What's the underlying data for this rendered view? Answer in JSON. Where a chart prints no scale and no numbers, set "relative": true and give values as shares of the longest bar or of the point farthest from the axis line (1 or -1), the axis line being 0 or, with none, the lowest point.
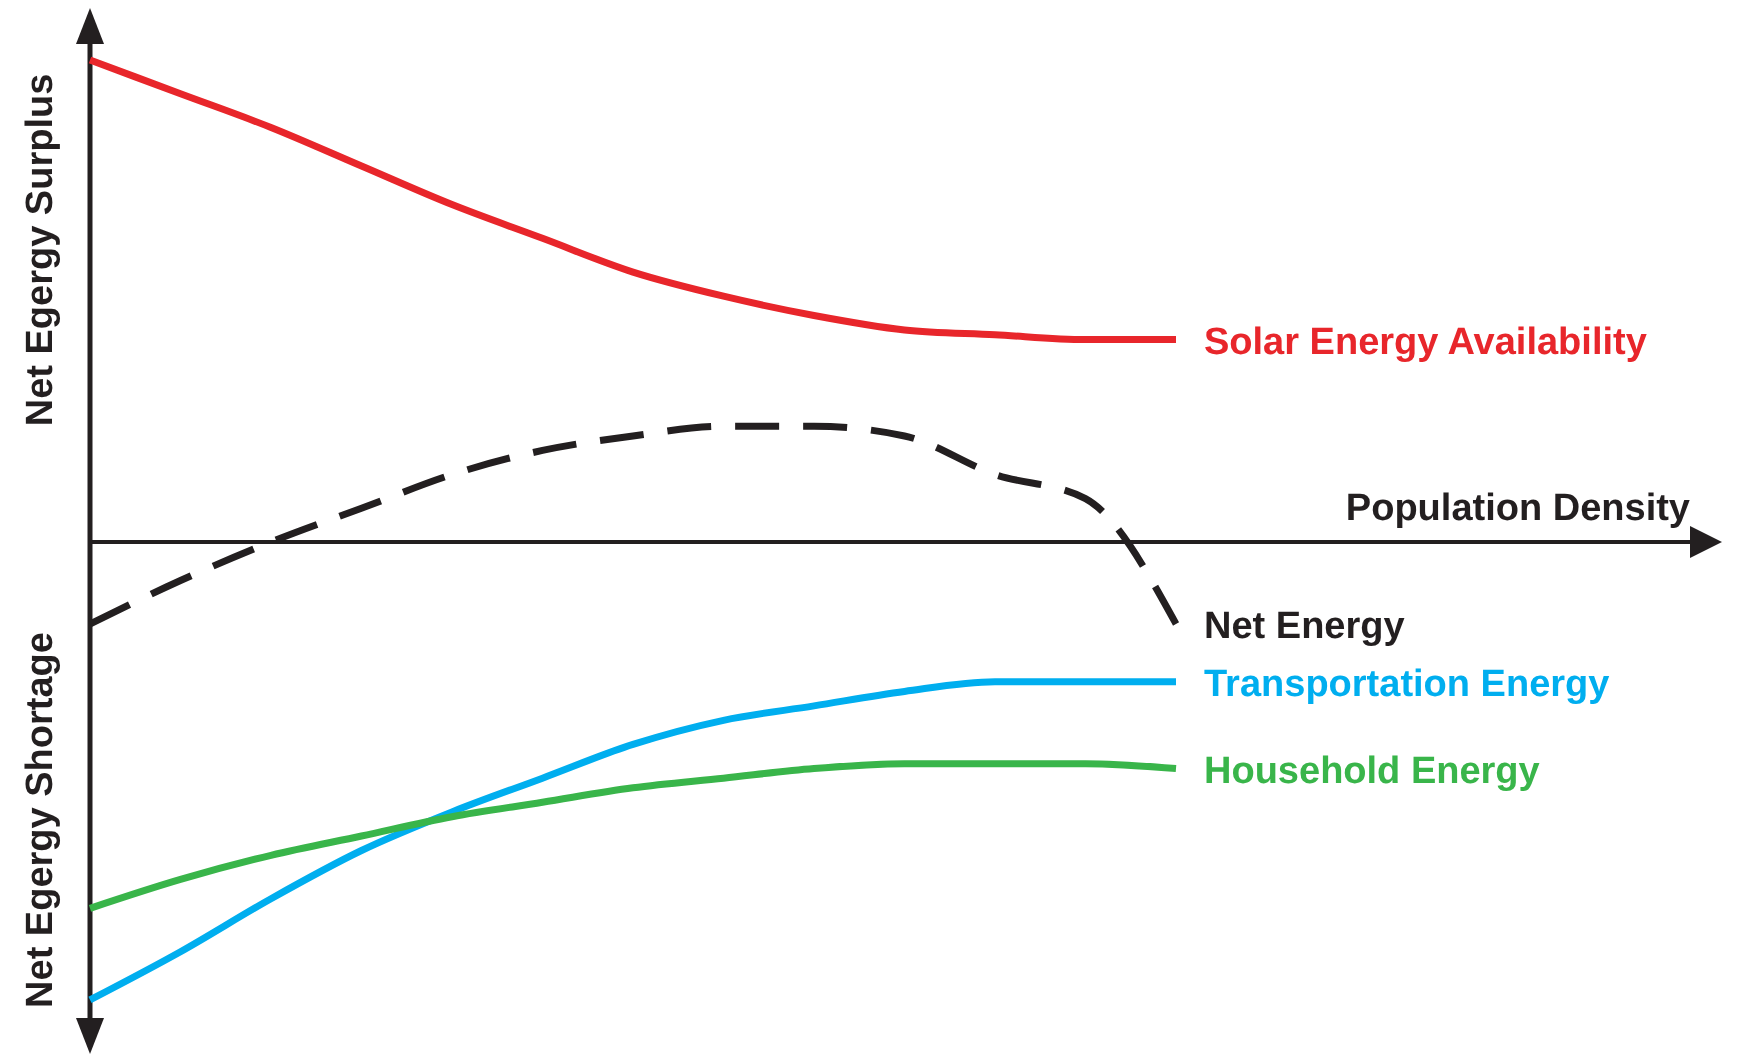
{
  "chart_data": {
    "type": "line",
    "relative": true,
    "xlabel": "Population Density",
    "ylabel": "Net Egergy Surplus",
    "annotations": [
      "Net Egergy Shortage"
    ],
    "line_style": "solid",
    "categories": [
      null,
      null,
      null,
      null,
      null,
      null,
      null,
      null,
      null,
      null,
      null,
      null,
      null
    ],
    "series": [
      {
        "name": "Solar Energy Availability",
        "color": "#e8262b",
        "values": [
          1,
          0.93,
          0.86,
          0.78,
          0.7,
          0.63,
          0.56,
          0.51,
          0.47,
          0.44,
          0.43,
          0.42,
          0.42
        ]
      },
      {
        "name": "Net Energy",
        "color": "#231f20",
        "line_style": "dashed",
        "values": [
          -0.17,
          -0.08,
          0,
          0.07,
          0.14,
          0.19,
          0.22,
          0.24,
          0.24,
          0.22,
          0.14,
          0.09,
          -0.17
        ]
      },
      {
        "name": "Transportation Energy",
        "color": "#00aeef",
        "values": [
          -0.95,
          -0.85,
          -0.74,
          -0.64,
          -0.56,
          -0.49,
          -0.42,
          -0.37,
          -0.34,
          -0.31,
          -0.29,
          -0.29,
          -0.29
        ]
      },
      {
        "name": "Household Energy",
        "color": "#39b54a",
        "values": [
          -0.76,
          -0.7,
          -0.65,
          -0.61,
          -0.57,
          -0.54,
          -0.51,
          -0.49,
          -0.47,
          -0.46,
          -0.46,
          -0.46,
          -0.47
        ]
      }
    ]
  }
}
